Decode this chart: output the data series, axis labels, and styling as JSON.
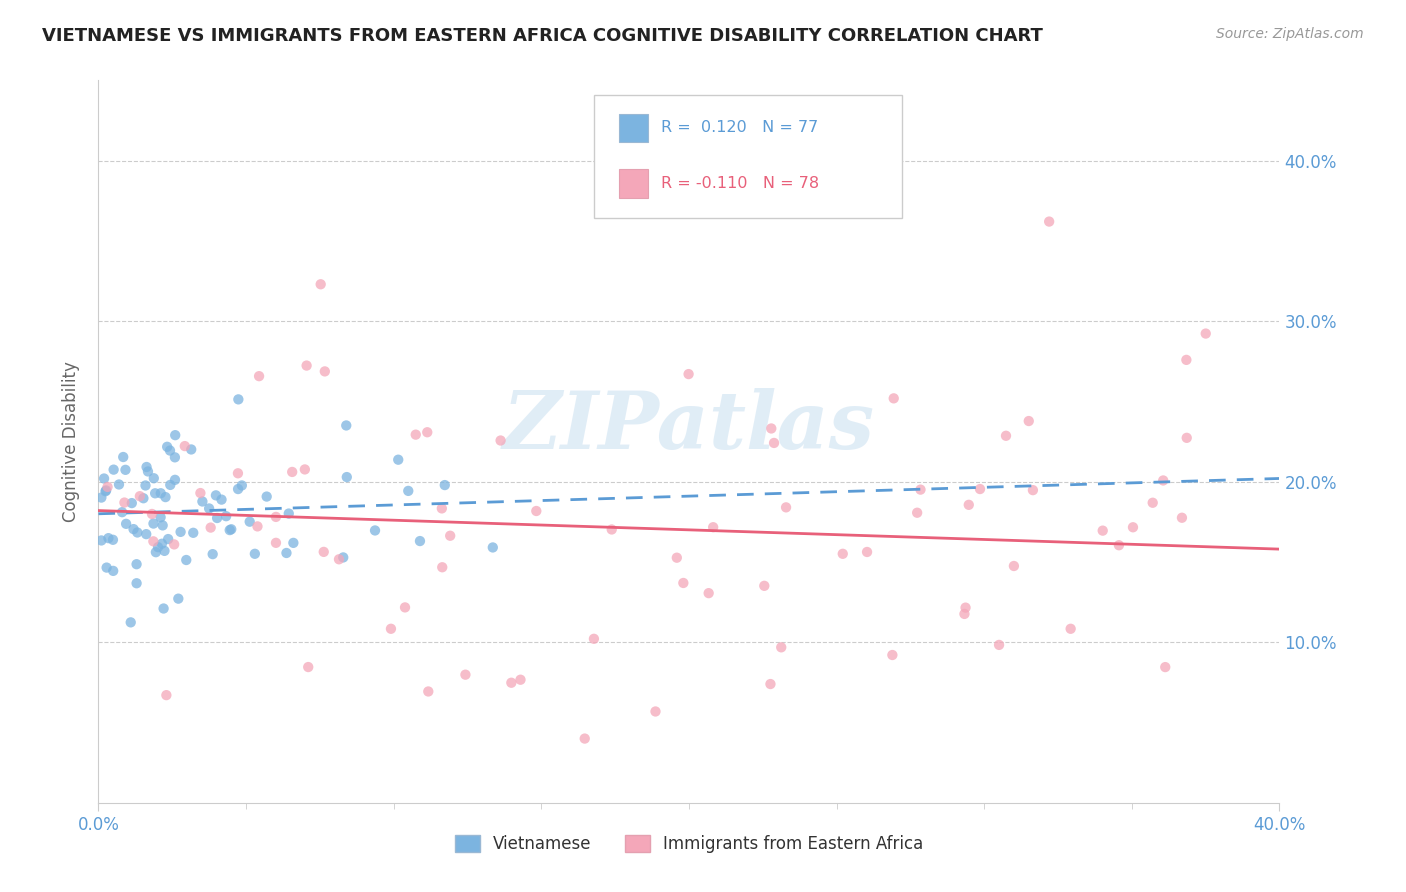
{
  "title": "VIETNAMESE VS IMMIGRANTS FROM EASTERN AFRICA COGNITIVE DISABILITY CORRELATION CHART",
  "source": "Source: ZipAtlas.com",
  "ylabel": "Cognitive Disability",
  "xlim": [
    0.0,
    0.4
  ],
  "ylim": [
    0.0,
    0.45
  ],
  "yticks": [
    0.1,
    0.2,
    0.3,
    0.4
  ],
  "title_fontsize": 13,
  "tick_color": "#5b9bd5",
  "grid_color": "#cccccc",
  "background_color": "#ffffff",
  "series": [
    {
      "name": "Vietnamese",
      "color": "#7cb4e0",
      "R": 0.12,
      "N": 77,
      "trend_style": "dashed",
      "trend_color": "#5b9bd5",
      "trend_y0": 0.18,
      "trend_y1": 0.202
    },
    {
      "name": "Immigrants from Eastern Africa",
      "color": "#f4a7b9",
      "R": -0.11,
      "N": 78,
      "trend_style": "solid",
      "trend_color": "#e8607a",
      "trend_y0": 0.182,
      "trend_y1": 0.158
    }
  ],
  "legend_R_color": "#5b9bd5",
  "legend_R2_color": "#e8607a",
  "watermark": "ZIPatlas",
  "watermark_color": "#c8dff0"
}
